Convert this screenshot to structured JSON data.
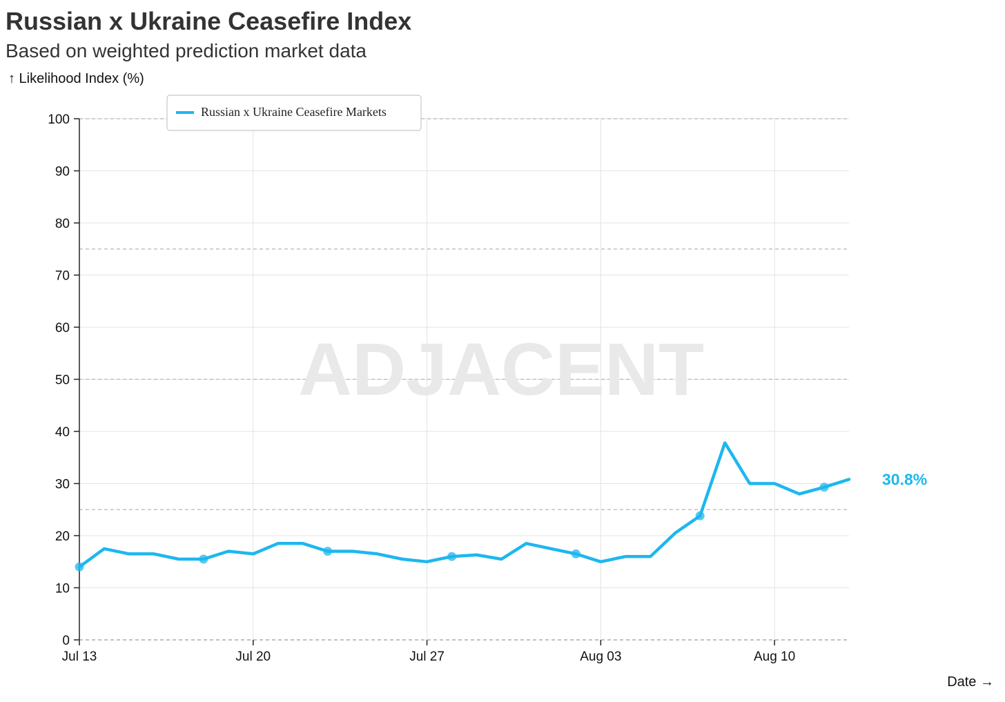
{
  "chart_data": {
    "type": "line",
    "title": "Russian x Ukraine Ceasefire Index",
    "subtitle": "Based on weighted prediction market data",
    "ylabel": "↑ Likelihood Index (%)",
    "xlabel": "Date →",
    "ylim": [
      0,
      100
    ],
    "yticks": [
      0,
      10,
      20,
      30,
      40,
      50,
      60,
      70,
      80,
      90,
      100
    ],
    "xlim": [
      "2025-07-13",
      "2025-08-13"
    ],
    "xticks": [
      {
        "date": "2025-07-13",
        "label": "Jul 13"
      },
      {
        "date": "2025-07-20",
        "label": "Jul 20"
      },
      {
        "date": "2025-07-27",
        "label": "Jul 27"
      },
      {
        "date": "2025-08-03",
        "label": "Aug 03"
      },
      {
        "date": "2025-08-10",
        "label": "Aug 10"
      }
    ],
    "reference_lines": [
      25,
      50,
      75,
      100
    ],
    "grid": true,
    "legend_position": "top-left",
    "watermark": "ADJACENT",
    "last_value_label": "30.8%",
    "color": "#1db7ef",
    "series": [
      {
        "name": "Russian x Ukraine Ceasefire Markets",
        "points": [
          {
            "x": "2025-07-13",
            "y": 14.0
          },
          {
            "x": "2025-07-14",
            "y": 17.5
          },
          {
            "x": "2025-07-15",
            "y": 16.5
          },
          {
            "x": "2025-07-16",
            "y": 16.5
          },
          {
            "x": "2025-07-17",
            "y": 15.5
          },
          {
            "x": "2025-07-18",
            "y": 15.5
          },
          {
            "x": "2025-07-19",
            "y": 17.0
          },
          {
            "x": "2025-07-20",
            "y": 16.5
          },
          {
            "x": "2025-07-21",
            "y": 18.5
          },
          {
            "x": "2025-07-22",
            "y": 18.5
          },
          {
            "x": "2025-07-23",
            "y": 17.0
          },
          {
            "x": "2025-07-24",
            "y": 17.0
          },
          {
            "x": "2025-07-25",
            "y": 16.5
          },
          {
            "x": "2025-07-26",
            "y": 15.5
          },
          {
            "x": "2025-07-27",
            "y": 15.0
          },
          {
            "x": "2025-07-28",
            "y": 16.0
          },
          {
            "x": "2025-07-29",
            "y": 16.3
          },
          {
            "x": "2025-07-30",
            "y": 15.5
          },
          {
            "x": "2025-07-31",
            "y": 18.5
          },
          {
            "x": "2025-08-01",
            "y": 17.5
          },
          {
            "x": "2025-08-02",
            "y": 16.5
          },
          {
            "x": "2025-08-03",
            "y": 15.0
          },
          {
            "x": "2025-08-04",
            "y": 16.0
          },
          {
            "x": "2025-08-05",
            "y": 16.0
          },
          {
            "x": "2025-08-06",
            "y": 20.5
          },
          {
            "x": "2025-08-07",
            "y": 23.8
          },
          {
            "x": "2025-08-08",
            "y": 37.8
          },
          {
            "x": "2025-08-09",
            "y": 30.0
          },
          {
            "x": "2025-08-10",
            "y": 30.0
          },
          {
            "x": "2025-08-11",
            "y": 28.0
          },
          {
            "x": "2025-08-12",
            "y": 29.3
          },
          {
            "x": "2025-08-13",
            "y": 30.8
          }
        ],
        "markers": [
          "2025-07-13",
          "2025-07-18",
          "2025-07-23",
          "2025-07-28",
          "2025-08-02",
          "2025-08-07",
          "2025-08-12"
        ]
      }
    ]
  }
}
